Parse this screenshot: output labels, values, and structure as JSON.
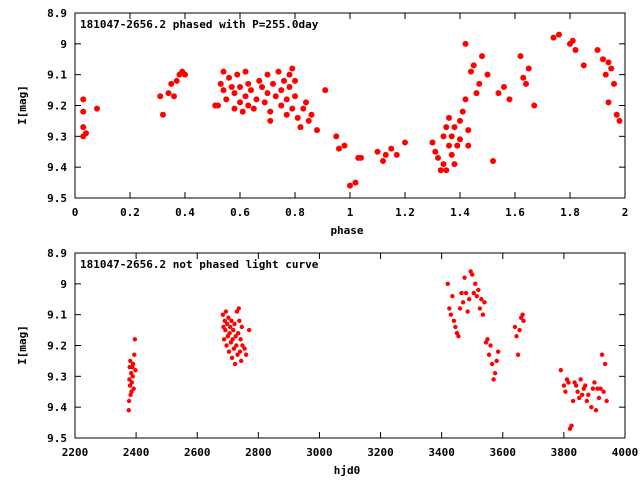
{
  "chart_data": [
    {
      "type": "scatter",
      "title": "181047-2656.2 phased with P=255.0day",
      "xlabel": "phase",
      "ylabel": "I[mag]",
      "xlim": [
        0,
        2
      ],
      "ylim": [
        8.9,
        9.5
      ],
      "y_inverted": true,
      "grid": false,
      "marker_color": "#ff0000",
      "x_ticks": [
        "0",
        "0.2",
        "0.4",
        "0.6",
        "0.8",
        "1",
        "1.2",
        "1.4",
        "1.6",
        "1.8",
        "2"
      ],
      "y_ticks": [
        "8.9",
        "9",
        "9.1",
        "9.2",
        "9.3",
        "9.4",
        "9.5"
      ],
      "series": [
        {
          "points": [
            [
              0.03,
              9.18
            ],
            [
              0.03,
              9.22
            ],
            [
              0.03,
              9.27
            ],
            [
              0.03,
              9.3
            ],
            [
              0.04,
              9.29
            ],
            [
              0.08,
              9.21
            ],
            [
              0.31,
              9.17
            ],
            [
              0.32,
              9.23
            ],
            [
              0.34,
              9.16
            ],
            [
              0.35,
              9.13
            ],
            [
              0.36,
              9.17
            ],
            [
              0.37,
              9.12
            ],
            [
              0.38,
              9.1
            ],
            [
              0.39,
              9.09
            ],
            [
              0.4,
              9.1
            ],
            [
              0.51,
              9.2
            ],
            [
              0.52,
              9.2
            ],
            [
              0.53,
              9.13
            ],
            [
              0.54,
              9.09
            ],
            [
              0.54,
              9.15
            ],
            [
              0.55,
              9.18
            ],
            [
              0.56,
              9.11
            ],
            [
              0.57,
              9.14
            ],
            [
              0.58,
              9.16
            ],
            [
              0.58,
              9.21
            ],
            [
              0.59,
              9.1
            ],
            [
              0.6,
              9.19
            ],
            [
              0.6,
              9.14
            ],
            [
              0.61,
              9.22
            ],
            [
              0.62,
              9.09
            ],
            [
              0.62,
              9.17
            ],
            [
              0.63,
              9.2
            ],
            [
              0.63,
              9.13
            ],
            [
              0.64,
              9.15
            ],
            [
              0.65,
              9.21
            ],
            [
              0.66,
              9.18
            ],
            [
              0.67,
              9.12
            ],
            [
              0.68,
              9.14
            ],
            [
              0.69,
              9.19
            ],
            [
              0.7,
              9.1
            ],
            [
              0.7,
              9.16
            ],
            [
              0.71,
              9.22
            ],
            [
              0.71,
              9.25
            ],
            [
              0.72,
              9.13
            ],
            [
              0.73,
              9.17
            ],
            [
              0.74,
              9.09
            ],
            [
              0.75,
              9.2
            ],
            [
              0.75,
              9.15
            ],
            [
              0.76,
              9.12
            ],
            [
              0.77,
              9.23
            ],
            [
              0.77,
              9.18
            ],
            [
              0.78,
              9.1
            ],
            [
              0.78,
              9.14
            ],
            [
              0.79,
              9.08
            ],
            [
              0.79,
              9.21
            ],
            [
              0.8,
              9.17
            ],
            [
              0.8,
              9.12
            ],
            [
              0.81,
              9.24
            ],
            [
              0.82,
              9.27
            ],
            [
              0.83,
              9.21
            ],
            [
              0.84,
              9.19
            ],
            [
              0.85,
              9.25
            ],
            [
              0.86,
              9.23
            ],
            [
              0.88,
              9.28
            ],
            [
              0.91,
              9.15
            ],
            [
              0.95,
              9.3
            ],
            [
              0.96,
              9.34
            ],
            [
              0.98,
              9.33
            ],
            [
              1.0,
              9.46
            ],
            [
              1.02,
              9.45
            ],
            [
              1.03,
              9.37
            ],
            [
              1.04,
              9.37
            ],
            [
              1.1,
              9.35
            ],
            [
              1.12,
              9.38
            ],
            [
              1.13,
              9.36
            ],
            [
              1.15,
              9.34
            ],
            [
              1.17,
              9.36
            ],
            [
              1.2,
              9.32
            ],
            [
              1.3,
              9.32
            ],
            [
              1.31,
              9.35
            ],
            [
              1.32,
              9.37
            ],
            [
              1.33,
              9.41
            ],
            [
              1.34,
              9.39
            ],
            [
              1.34,
              9.3
            ],
            [
              1.35,
              9.27
            ],
            [
              1.35,
              9.41
            ],
            [
              1.36,
              9.33
            ],
            [
              1.36,
              9.24
            ],
            [
              1.37,
              9.36
            ],
            [
              1.37,
              9.3
            ],
            [
              1.38,
              9.39
            ],
            [
              1.38,
              9.27
            ],
            [
              1.39,
              9.33
            ],
            [
              1.4,
              9.25
            ],
            [
              1.4,
              9.31
            ],
            [
              1.41,
              9.22
            ],
            [
              1.42,
              9.0
            ],
            [
              1.42,
              9.18
            ],
            [
              1.43,
              9.28
            ],
            [
              1.43,
              9.33
            ],
            [
              1.44,
              9.09
            ],
            [
              1.45,
              9.07
            ],
            [
              1.46,
              9.16
            ],
            [
              1.47,
              9.13
            ],
            [
              1.48,
              9.04
            ],
            [
              1.5,
              9.1
            ],
            [
              1.52,
              9.38
            ],
            [
              1.54,
              9.16
            ],
            [
              1.56,
              9.14
            ],
            [
              1.58,
              9.18
            ],
            [
              1.62,
              9.04
            ],
            [
              1.63,
              9.11
            ],
            [
              1.64,
              9.13
            ],
            [
              1.65,
              9.08
            ],
            [
              1.67,
              9.2
            ],
            [
              1.74,
              8.98
            ],
            [
              1.76,
              8.97
            ],
            [
              1.8,
              9.0
            ],
            [
              1.81,
              8.99
            ],
            [
              1.82,
              9.02
            ],
            [
              1.85,
              9.07
            ],
            [
              1.9,
              9.02
            ],
            [
              1.92,
              9.05
            ],
            [
              1.93,
              9.1
            ],
            [
              1.94,
              9.06
            ],
            [
              1.95,
              9.08
            ],
            [
              1.96,
              9.13
            ],
            [
              1.97,
              9.23
            ],
            [
              1.98,
              9.25
            ],
            [
              1.94,
              9.19
            ]
          ]
        }
      ]
    },
    {
      "type": "scatter",
      "title": "181047-2656.2 not phased light curve",
      "xlabel": "hjd0",
      "ylabel": "I[mag]",
      "xlim": [
        2200,
        4000
      ],
      "ylim": [
        8.9,
        9.5
      ],
      "y_inverted": true,
      "grid": false,
      "marker_color": "#ff0000",
      "x_ticks": [
        "2200",
        "2400",
        "2600",
        "2800",
        "3000",
        "3200",
        "3400",
        "3600",
        "3800",
        "4000"
      ],
      "y_ticks": [
        "8.9",
        "9",
        "9.1",
        "9.2",
        "9.3",
        "9.4",
        "9.5"
      ],
      "series": [
        {
          "points": [
            [
              2376,
              9.41
            ],
            [
              2377,
              9.38
            ],
            [
              2378,
              9.31
            ],
            [
              2379,
              9.27
            ],
            [
              2380,
              9.33
            ],
            [
              2381,
              9.25
            ],
            [
              2382,
              9.36
            ],
            [
              2384,
              9.29
            ],
            [
              2385,
              9.35
            ],
            [
              2386,
              9.32
            ],
            [
              2388,
              9.27
            ],
            [
              2389,
              9.3
            ],
            [
              2390,
              9.26
            ],
            [
              2392,
              9.34
            ],
            [
              2394,
              9.23
            ],
            [
              2396,
              9.18
            ],
            [
              2398,
              9.28
            ],
            [
              2684,
              9.1
            ],
            [
              2686,
              9.14
            ],
            [
              2688,
              9.18
            ],
            [
              2690,
              9.12
            ],
            [
              2692,
              9.15
            ],
            [
              2694,
              9.09
            ],
            [
              2696,
              9.2
            ],
            [
              2698,
              9.13
            ],
            [
              2700,
              9.17
            ],
            [
              2702,
              9.11
            ],
            [
              2704,
              9.22
            ],
            [
              2706,
              9.16
            ],
            [
              2708,
              9.14
            ],
            [
              2710,
              9.19
            ],
            [
              2712,
              9.12
            ],
            [
              2714,
              9.24
            ],
            [
              2716,
              9.18
            ],
            [
              2718,
              9.15
            ],
            [
              2720,
              9.21
            ],
            [
              2722,
              9.13
            ],
            [
              2724,
              9.26
            ],
            [
              2726,
              9.17
            ],
            [
              2728,
              9.2
            ],
            [
              2730,
              9.09
            ],
            [
              2732,
              9.23
            ],
            [
              2734,
              9.16
            ],
            [
              2736,
              9.08
            ],
            [
              2738,
              9.12
            ],
            [
              2740,
              9.22
            ],
            [
              2742,
              9.18
            ],
            [
              2744,
              9.25
            ],
            [
              2746,
              9.14
            ],
            [
              2748,
              9.2
            ],
            [
              2755,
              9.21
            ],
            [
              2760,
              9.23
            ],
            [
              2770,
              9.15
            ],
            [
              3420,
              9.0
            ],
            [
              3425,
              9.08
            ],
            [
              3430,
              9.1
            ],
            [
              3435,
              9.04
            ],
            [
              3440,
              9.12
            ],
            [
              3445,
              9.14
            ],
            [
              3450,
              9.16
            ],
            [
              3455,
              9.17
            ],
            [
              3460,
              9.08
            ],
            [
              3465,
              9.03
            ],
            [
              3470,
              9.06
            ],
            [
              3475,
              8.98
            ],
            [
              3480,
              9.03
            ],
            [
              3485,
              9.09
            ],
            [
              3490,
              9.05
            ],
            [
              3495,
              8.96
            ],
            [
              3500,
              8.97
            ],
            [
              3505,
              9.03
            ],
            [
              3510,
              9.0
            ],
            [
              3515,
              9.04
            ],
            [
              3520,
              9.02
            ],
            [
              3525,
              9.08
            ],
            [
              3530,
              9.05
            ],
            [
              3535,
              9.1
            ],
            [
              3540,
              9.06
            ],
            [
              3545,
              9.19
            ],
            [
              3550,
              9.18
            ],
            [
              3555,
              9.23
            ],
            [
              3560,
              9.2
            ],
            [
              3565,
              9.26
            ],
            [
              3570,
              9.31
            ],
            [
              3575,
              9.29
            ],
            [
              3580,
              9.25
            ],
            [
              3585,
              9.22
            ],
            [
              3640,
              9.14
            ],
            [
              3645,
              9.17
            ],
            [
              3650,
              9.23
            ],
            [
              3655,
              9.15
            ],
            [
              3660,
              9.11
            ],
            [
              3665,
              9.1
            ],
            [
              3668,
              9.12
            ],
            [
              3790,
              9.28
            ],
            [
              3800,
              9.33
            ],
            [
              3805,
              9.35
            ],
            [
              3810,
              9.31
            ],
            [
              3815,
              9.32
            ],
            [
              3820,
              9.47
            ],
            [
              3825,
              9.46
            ],
            [
              3830,
              9.38
            ],
            [
              3835,
              9.32
            ],
            [
              3840,
              9.33
            ],
            [
              3845,
              9.35
            ],
            [
              3850,
              9.37
            ],
            [
              3855,
              9.31
            ],
            [
              3860,
              9.36
            ],
            [
              3865,
              9.34
            ],
            [
              3870,
              9.33
            ],
            [
              3875,
              9.38
            ],
            [
              3880,
              9.36
            ],
            [
              3890,
              9.4
            ],
            [
              3895,
              9.34
            ],
            [
              3900,
              9.32
            ],
            [
              3905,
              9.41
            ],
            [
              3910,
              9.34
            ],
            [
              3915,
              9.37
            ],
            [
              3920,
              9.34
            ],
            [
              3925,
              9.23
            ],
            [
              3930,
              9.35
            ],
            [
              3935,
              9.26
            ],
            [
              3940,
              9.38
            ]
          ]
        }
      ]
    }
  ]
}
